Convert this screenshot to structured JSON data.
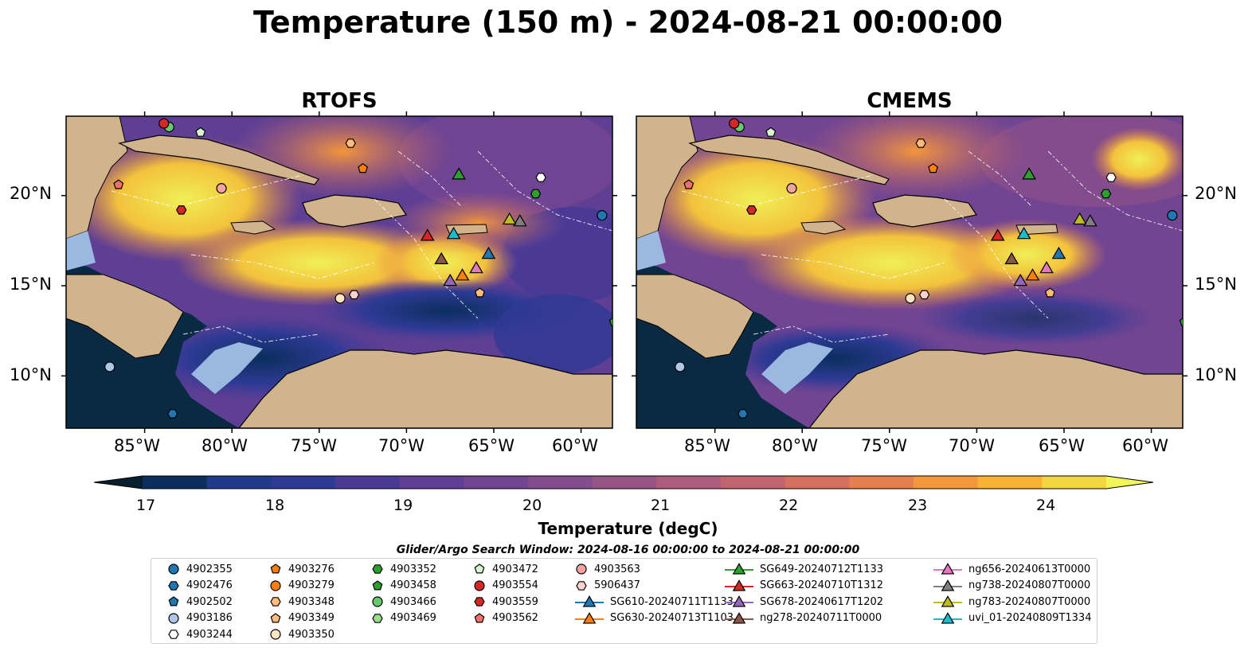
{
  "title": "Temperature (150 m) - 2024-08-21 00:00:00",
  "panels": [
    {
      "name": "RTOFS"
    },
    {
      "name": "CMEMS"
    }
  ],
  "lat_labels": [
    "10°N",
    "15°N",
    "20°N"
  ],
  "lon_labels": [
    "85°W",
    "80°W",
    "75°W",
    "70°W",
    "65°W",
    "60°W"
  ],
  "colorbar": {
    "label": "Temperature (degC)",
    "ticks": [
      "17",
      "18",
      "19",
      "20",
      "21",
      "22",
      "23",
      "24"
    ],
    "min": 17,
    "max": 24.5,
    "step": 0.5,
    "colors": [
      "#0a2a44",
      "#0b2e5e",
      "#1f3a8a",
      "#2e3a94",
      "#4a3a96",
      "#5e3f94",
      "#714592",
      "#834c8c",
      "#985485",
      "#ad5c7d",
      "#c2646f",
      "#d56f5e",
      "#e67f4c",
      "#f3963c",
      "#f9b234",
      "#f2d741",
      "#f0ef56"
    ],
    "under_color": "#071f2e",
    "over_color": "#f2f55a"
  },
  "map_colors": {
    "land": "#d2b48c",
    "shelf": "#9ab8e0",
    "border": "#000000"
  },
  "legend": {
    "title": "Glider/Argo Search Window: 2024-08-16 00:00:00 to 2024-08-21 00:00:00",
    "items": [
      {
        "label": "4902355",
        "shape": "circle",
        "color": "#1f77b4"
      },
      {
        "label": "4902476",
        "shape": "hexagon",
        "color": "#1f77b4"
      },
      {
        "label": "4902502",
        "shape": "pentagon",
        "color": "#1f77b4"
      },
      {
        "label": "4903186",
        "shape": "circle",
        "color": "#aec7e8"
      },
      {
        "label": "4903244",
        "shape": "hexagon",
        "color": "#ffffff"
      },
      {
        "label": "4903276",
        "shape": "pentagon",
        "color": "#ff7f0e"
      },
      {
        "label": "4903279",
        "shape": "circle",
        "color": "#ff7f0e"
      },
      {
        "label": "4903348",
        "shape": "hexagon",
        "color": "#ffbb78"
      },
      {
        "label": "4903349",
        "shape": "pentagon",
        "color": "#ffbb78"
      },
      {
        "label": "4903350",
        "shape": "circle",
        "color": "#ffe4c4"
      },
      {
        "label": "4903352",
        "shape": "hexagon",
        "color": "#2ca02c"
      },
      {
        "label": "4903458",
        "shape": "pentagon",
        "color": "#2ca02c"
      },
      {
        "label": "4903466",
        "shape": "circle",
        "color": "#67c96b"
      },
      {
        "label": "4903469",
        "shape": "hexagon",
        "color": "#98df8a"
      },
      {
        "label": "4903472",
        "shape": "pentagon",
        "color": "#d9f5d0"
      },
      {
        "label": "4903554",
        "shape": "circle",
        "color": "#d62728"
      },
      {
        "label": "4903559",
        "shape": "hexagon",
        "color": "#d62728"
      },
      {
        "label": "4903562",
        "shape": "pentagon",
        "color": "#f07070"
      },
      {
        "label": "4903563",
        "shape": "circle",
        "color": "#f4a3a3"
      },
      {
        "label": "5906437",
        "shape": "hexagon",
        "color": "#ffd0d0"
      },
      {
        "label": "SG610-20240711T1133",
        "shape": "triangle",
        "color": "#1f77b4"
      },
      {
        "label": "SG630-20240713T1103",
        "shape": "triangle",
        "color": "#ff7f0e"
      },
      {
        "label": "SG649-20240712T1133",
        "shape": "triangle",
        "color": "#2ca02c"
      },
      {
        "label": "SG663-20240710T1312",
        "shape": "triangle",
        "color": "#d62728"
      },
      {
        "label": "SG678-20240617T1202",
        "shape": "triangle",
        "color": "#9467bd"
      },
      {
        "label": "ng278-20240711T0000",
        "shape": "triangle",
        "color": "#8c564b"
      },
      {
        "label": "ng656-20240613T0000",
        "shape": "triangle",
        "color": "#e377c2"
      },
      {
        "label": "ng738-20240807T0000",
        "shape": "triangle",
        "color": "#7f7f7f"
      },
      {
        "label": "ng783-20240807T0000",
        "shape": "triangle",
        "color": "#bcbd22"
      },
      {
        "label": "uvi_01-20240809T1334",
        "shape": "triangle",
        "color": "#17becf"
      }
    ]
  },
  "markers": [
    {
      "id": "4902355",
      "lon": -58.8,
      "lat": 18.9
    },
    {
      "id": "4903186",
      "lon": -87.0,
      "lat": 10.5
    },
    {
      "id": "4903244",
      "lon": -62.3,
      "lat": 21.0
    },
    {
      "id": "4903276",
      "lon": -72.5,
      "lat": 21.5
    },
    {
      "id": "4903348",
      "lon": -73.2,
      "lat": 22.9
    },
    {
      "id": "4903349",
      "lon": -65.8,
      "lat": 14.6
    },
    {
      "id": "4903352",
      "lon": -62.6,
      "lat": 20.1
    },
    {
      "id": "4903458",
      "lon": -58.1,
      "lat": 13.0
    },
    {
      "id": "4903466",
      "lon": -83.6,
      "lat": 23.8
    },
    {
      "id": "4903472",
      "lon": -81.8,
      "lat": 23.5
    },
    {
      "id": "4903554",
      "lon": -83.9,
      "lat": 24.0
    },
    {
      "id": "4903559",
      "lon": -82.9,
      "lat": 19.2
    },
    {
      "id": "4903562",
      "lon": -86.5,
      "lat": 20.6
    },
    {
      "id": "4903563",
      "lon": -80.6,
      "lat": 20.4
    },
    {
      "id": "5906437",
      "lon": -73.0,
      "lat": 14.5
    },
    {
      "id": "4903350",
      "lon": -73.8,
      "lat": 14.3
    },
    {
      "id": "4902476",
      "lon": -83.4,
      "lat": 7.9
    },
    {
      "id": "SG610-20240711T1133",
      "lon": -65.3,
      "lat": 16.8
    },
    {
      "id": "SG630-20240713T1103",
      "lon": -66.8,
      "lat": 15.6
    },
    {
      "id": "SG649-20240712T1133",
      "lon": -67.0,
      "lat": 21.2
    },
    {
      "id": "SG663-20240710T1312",
      "lon": -68.8,
      "lat": 17.8
    },
    {
      "id": "SG678-20240617T1202",
      "lon": -67.5,
      "lat": 15.3
    },
    {
      "id": "ng278-20240711T0000",
      "lon": -68.0,
      "lat": 16.5
    },
    {
      "id": "ng656-20240613T0000",
      "lon": -66.0,
      "lat": 16.0
    },
    {
      "id": "ng738-20240807T0000",
      "lon": -63.5,
      "lat": 18.6
    },
    {
      "id": "ng783-20240807T0000",
      "lon": -64.1,
      "lat": 18.7
    },
    {
      "id": "uvi_01-20240809T1334",
      "lon": -67.3,
      "lat": 17.9
    }
  ]
}
